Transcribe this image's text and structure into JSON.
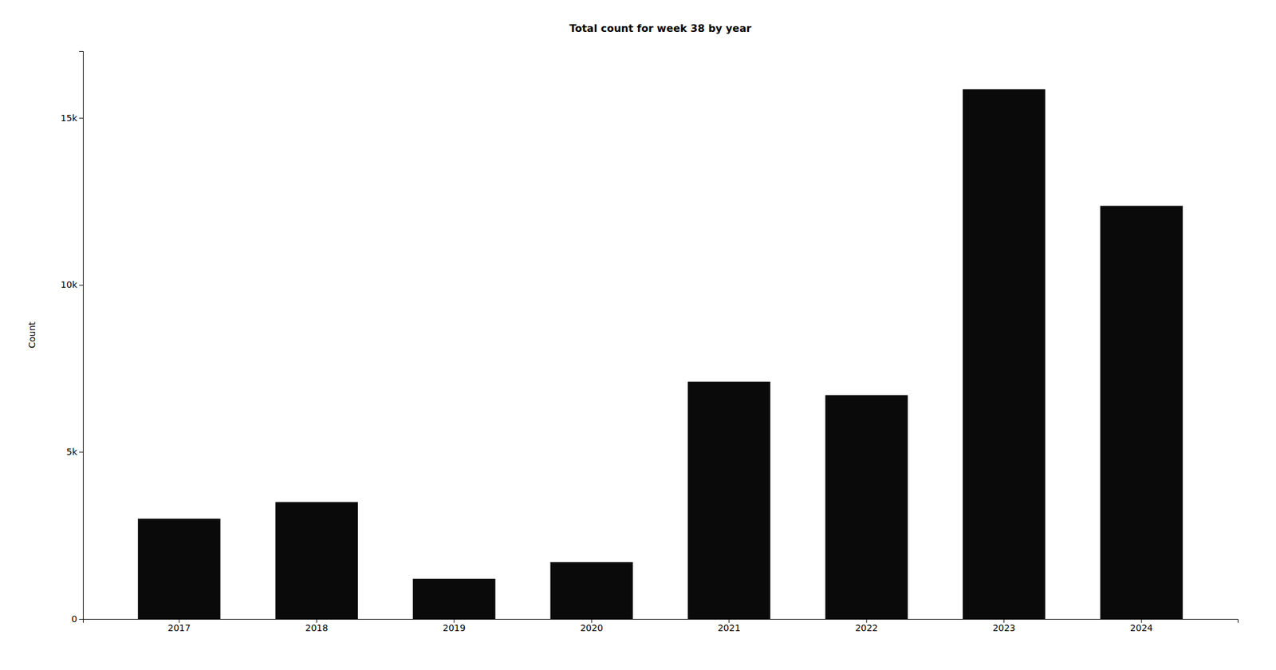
{
  "chart_data": {
    "type": "bar",
    "title": "Total count for week 38 by year",
    "ylabel": "Count",
    "categories": [
      "2017",
      "2018",
      "2019",
      "2020",
      "2021",
      "2022",
      "2023",
      "2024"
    ],
    "values": [
      3000,
      3500,
      1200,
      1700,
      7100,
      6700,
      15855,
      12367
    ],
    "color": "#0a0a0a",
    "ylim": [
      0,
      17000
    ],
    "yticks": [
      0,
      {
        "value": 5000,
        "label": "5k"
      },
      {
        "value": 10000,
        "label": "10k"
      },
      {
        "value": 15000,
        "label": "15k"
      }
    ],
    "grid": false
  }
}
